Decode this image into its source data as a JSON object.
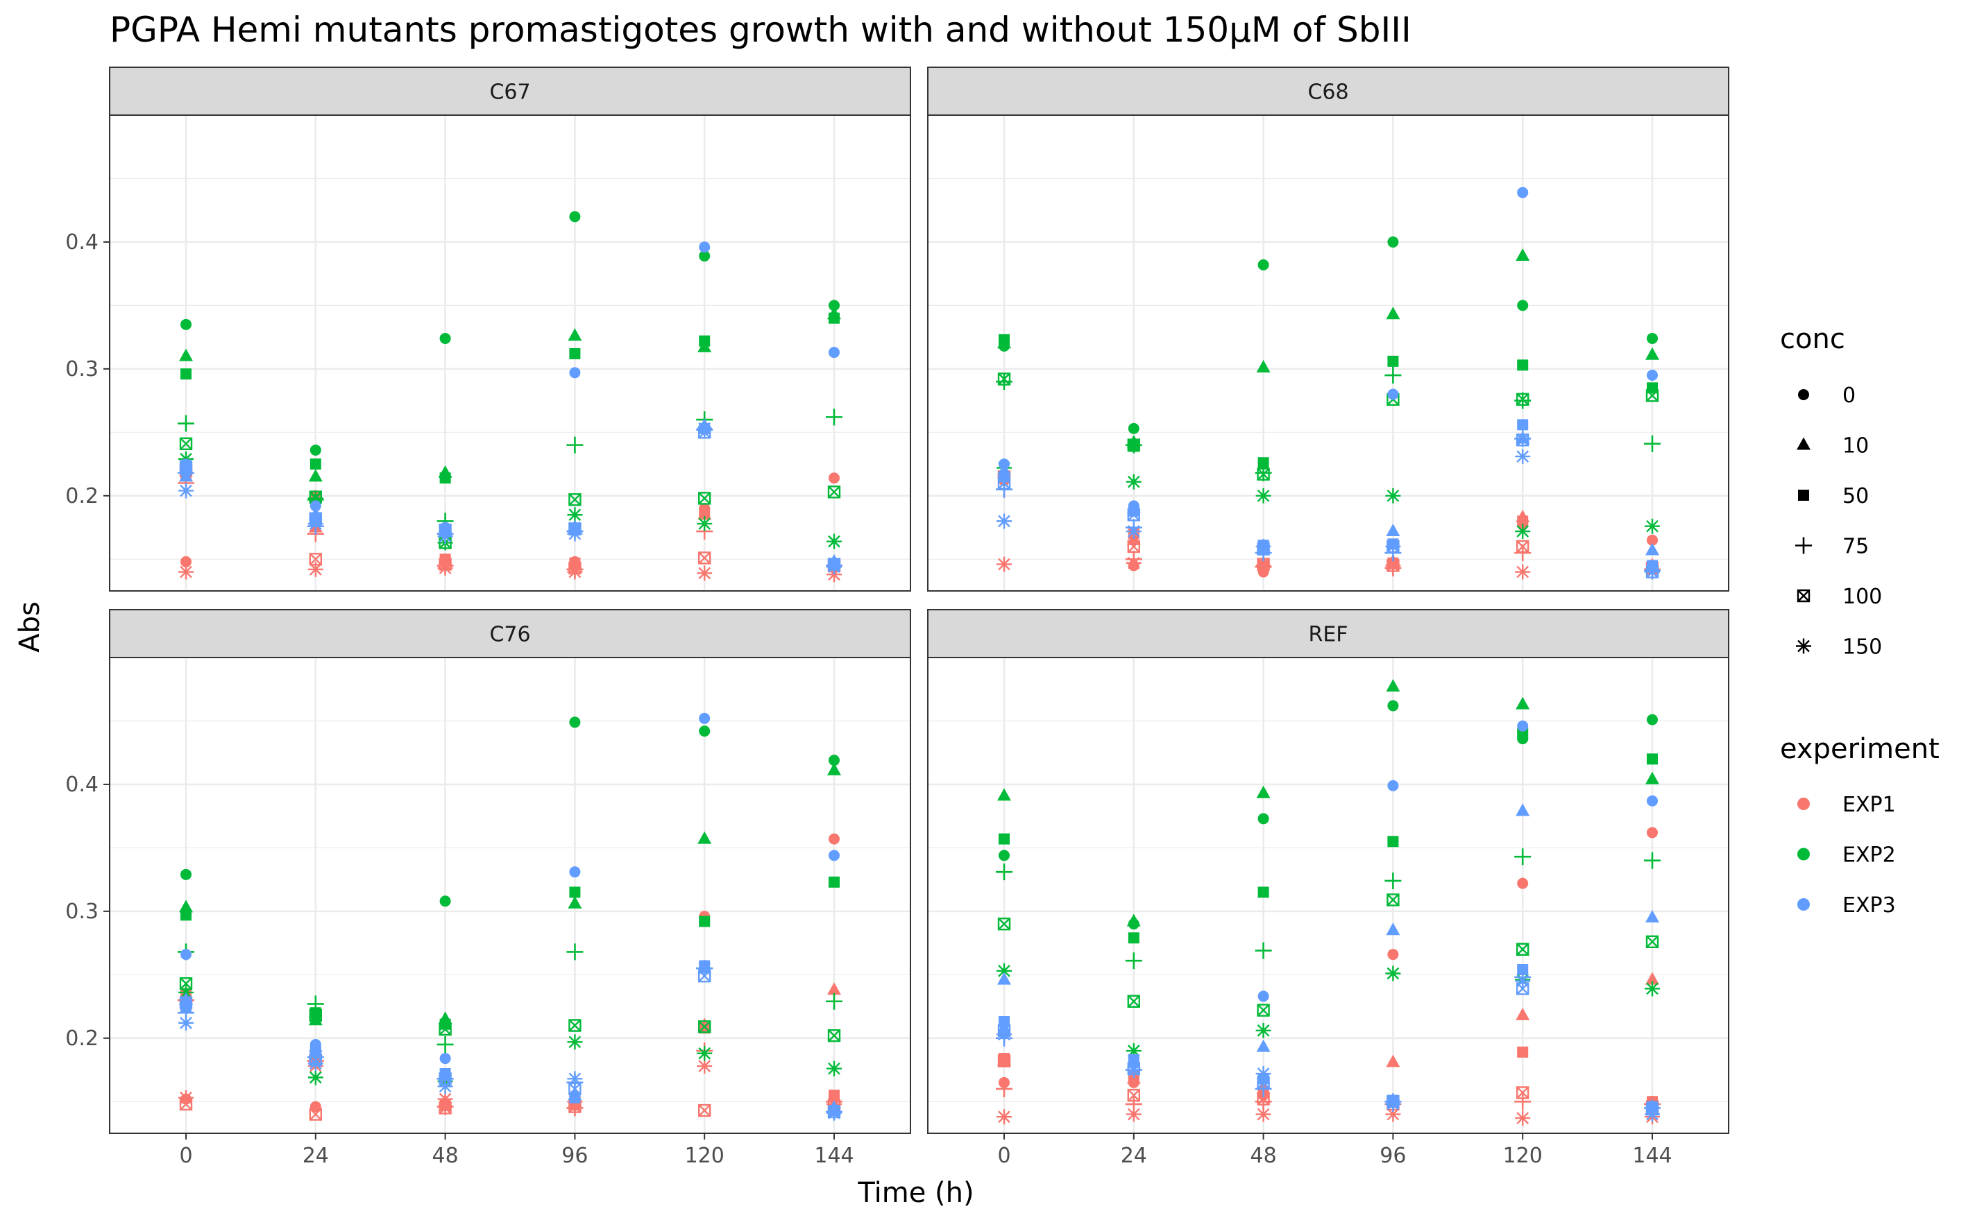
{
  "chart_data": {
    "type": "scatter",
    "title": "PGPA Hemi mutants promastigotes growth with and without 150µM of SbIII",
    "xlabel": "Time (h)",
    "ylabel": "Abs",
    "x_categories": [
      "0",
      "24",
      "48",
      "96",
      "120",
      "144"
    ],
    "y_ticks": [
      0.2,
      0.3,
      0.4
    ],
    "ylim": [
      0.125,
      0.5
    ],
    "grid": true,
    "legend_position": "right",
    "legends": {
      "conc": {
        "title": "conc",
        "entries": [
          "0",
          "10",
          "50",
          "75",
          "100",
          "150"
        ],
        "shapes": [
          "circle",
          "triangle",
          "square",
          "plus",
          "square-cross",
          "asterisk"
        ]
      },
      "experiment": {
        "title": "experiment",
        "entries": [
          "EXP1",
          "EXP2",
          "EXP3"
        ]
      }
    },
    "colors": {
      "EXP1": "#F8766D",
      "EXP2": "#00BA38",
      "EXP3": "#619CFF"
    },
    "conc_levels": [
      "0",
      "10",
      "50",
      "75",
      "100",
      "150"
    ],
    "panels": [
      {
        "name": "C67",
        "series": [
          {
            "experiment": "EXP1",
            "conc": {
              "0": [
                0.148,
                0.2,
                0.15,
                0.148,
                0.19,
                0.214
              ],
              "10": [
                0.215,
                0.175,
                0.148,
                0.145,
                0.185,
                0.147
              ],
              "50": [
                0.218,
                0.18,
                0.15,
                0.147,
                0.186,
                0.146
              ],
              "75": [
                0.21,
                0.17,
                0.145,
                0.142,
                0.172,
                0.145
              ],
              "100": [
                0.22,
                0.15,
                0.146,
                0.143,
                0.151,
                0.145
              ],
              "150": [
                0.14,
                0.142,
                0.143,
                0.14,
                0.139,
                0.138
              ]
            }
          },
          {
            "experiment": "EXP2",
            "conc": {
              "0": [
                0.335,
                0.236,
                0.324,
                0.42,
                0.389,
                0.35
              ],
              "10": [
                0.31,
                0.215,
                0.218,
                0.326,
                0.317,
                0.343
              ],
              "50": [
                0.296,
                0.225,
                0.214,
                0.312,
                0.322,
                0.34
              ],
              "75": [
                0.257,
                0.197,
                0.18,
                0.24,
                0.26,
                0.262
              ],
              "100": [
                0.241,
                0.199,
                0.163,
                0.197,
                0.198,
                0.203
              ],
              "150": [
                0.229,
                0.198,
                0.163,
                0.185,
                0.178,
                0.164
              ]
            }
          },
          {
            "experiment": "EXP3",
            "conc": {
              "0": [
                0.225,
                0.192,
                0.175,
                0.297,
                0.396,
                0.313
              ],
              "10": [
                0.215,
                0.185,
                0.171,
                0.175,
                0.255,
                0.148
              ],
              "50": [
                0.22,
                0.18,
                0.172,
                0.173,
                0.253,
                0.146
              ],
              "75": [
                0.218,
                0.176,
                0.17,
                0.172,
                0.252,
                0.145
              ],
              "100": [
                0.223,
                0.182,
                0.173,
                0.174,
                0.25,
                0.146
              ],
              "150": [
                0.204,
                0.178,
                0.168,
                0.17,
                0.253,
                0.144
              ]
            }
          }
        ]
      },
      {
        "name": "C68",
        "series": [
          {
            "experiment": "EXP1",
            "conc": {
              "0": [
                0.212,
                0.145,
                0.14,
                0.146,
                0.177,
                0.165
              ],
              "10": [
                0.218,
                0.165,
                0.147,
                0.148,
                0.183,
                0.145
              ],
              "50": [
                0.215,
                0.17,
                0.145,
                0.147,
                0.18,
                0.144
              ],
              "75": [
                0.205,
                0.15,
                0.144,
                0.143,
                0.155,
                0.142
              ],
              "100": [
                0.215,
                0.16,
                0.146,
                0.145,
                0.16,
                0.143
              ],
              "150": [
                0.146,
                0.147,
                0.145,
                0.145,
                0.14,
                0.142
              ]
            }
          },
          {
            "experiment": "EXP2",
            "conc": {
              "0": [
                0.318,
                0.253,
                0.382,
                0.4,
                0.35,
                0.324
              ],
              "10": [
                0.32,
                0.242,
                0.301,
                0.343,
                0.389,
                0.311
              ],
              "50": [
                0.323,
                0.239,
                0.226,
                0.306,
                0.303,
                0.285
              ],
              "75": [
                0.29,
                0.24,
                0.218,
                0.295,
                0.275,
                0.241
              ],
              "100": [
                0.292,
                0.24,
                0.217,
                0.276,
                0.276,
                0.279
              ],
              "150": [
                0.222,
                0.211,
                0.2,
                0.2,
                0.172,
                0.176
              ]
            }
          },
          {
            "experiment": "EXP3",
            "conc": {
              "0": [
                0.225,
                0.192,
                0.16,
                0.28,
                0.439,
                0.295
              ],
              "10": [
                0.22,
                0.19,
                0.16,
                0.172,
                0.245,
                0.157
              ],
              "50": [
                0.215,
                0.188,
                0.161,
                0.162,
                0.256,
                0.145
              ],
              "75": [
                0.205,
                0.175,
                0.155,
                0.155,
                0.245,
                0.141
              ],
              "100": [
                0.21,
                0.185,
                0.158,
                0.16,
                0.244,
                0.14
              ],
              "150": [
                0.18,
                0.172,
                0.16,
                0.16,
                0.231,
                0.14
              ]
            }
          }
        ]
      },
      {
        "name": "C76",
        "series": [
          {
            "experiment": "EXP1",
            "conc": {
              "0": [
                0.152,
                0.146,
                0.148,
                0.147,
                0.296,
                0.357
              ],
              "10": [
                0.232,
                0.19,
                0.15,
                0.15,
                0.21,
                0.238
              ],
              "50": [
                0.235,
                0.185,
                0.147,
                0.148,
                0.208,
                0.155
              ],
              "75": [
                0.23,
                0.182,
                0.146,
                0.145,
                0.19,
                0.15
              ],
              "100": [
                0.148,
                0.14,
                0.145,
                0.146,
                0.143,
                0.147
              ],
              "150": [
                0.153,
                0.178,
                0.152,
                0.15,
                0.178,
                0.148
              ]
            }
          },
          {
            "experiment": "EXP2",
            "conc": {
              "0": [
                0.329,
                0.22,
                0.308,
                0.449,
                0.442,
                0.419
              ],
              "10": [
                0.303,
                0.214,
                0.215,
                0.306,
                0.357,
                0.411
              ],
              "50": [
                0.297,
                0.22,
                0.211,
                0.315,
                0.292,
                0.323
              ],
              "75": [
                0.268,
                0.227,
                0.195,
                0.268,
                0.255,
                0.229
              ],
              "100": [
                0.243,
                0.218,
                0.207,
                0.21,
                0.209,
                0.202
              ],
              "150": [
                0.236,
                0.169,
                0.166,
                0.197,
                0.188,
                0.176
              ]
            }
          },
          {
            "experiment": "EXP3",
            "conc": {
              "0": [
                0.266,
                0.195,
                0.184,
                0.331,
                0.452,
                0.344
              ],
              "10": [
                0.23,
                0.193,
                0.17,
                0.155,
                0.255,
                0.145
              ],
              "50": [
                0.225,
                0.19,
                0.172,
                0.153,
                0.257,
                0.143
              ],
              "75": [
                0.22,
                0.185,
                0.168,
                0.165,
                0.255,
                0.142
              ],
              "100": [
                0.228,
                0.183,
                0.168,
                0.16,
                0.249,
                0.142
              ],
              "150": [
                0.212,
                0.18,
                0.162,
                0.168,
                0.255,
                0.141
              ]
            }
          }
        ]
      },
      {
        "name": "REF",
        "series": [
          {
            "experiment": "EXP1",
            "conc": {
              "0": [
                0.165,
                0.165,
                0.155,
                0.266,
                0.322,
                0.362
              ],
              "10": [
                0.182,
                0.168,
                0.16,
                0.181,
                0.218,
                0.246
              ],
              "50": [
                0.184,
                0.17,
                0.158,
                0.15,
                0.189,
                0.15
              ],
              "75": [
                0.16,
                0.148,
                0.15,
                0.148,
                0.15,
                0.148
              ],
              "100": [
                0.182,
                0.155,
                0.152,
                0.148,
                0.157,
                0.146
              ],
              "150": [
                0.138,
                0.14,
                0.14,
                0.14,
                0.137,
                0.138
              ]
            }
          },
          {
            "experiment": "EXP2",
            "conc": {
              "0": [
                0.344,
                0.29,
                0.373,
                0.462,
                0.436,
                0.451
              ],
              "10": [
                0.391,
                0.292,
                0.393,
                0.477,
                0.463,
                0.404
              ],
              "50": [
                0.357,
                0.279,
                0.315,
                0.355,
                0.44,
                0.42
              ],
              "75": [
                0.331,
                0.261,
                0.269,
                0.324,
                0.343,
                0.34
              ],
              "100": [
                0.29,
                0.229,
                0.222,
                0.309,
                0.27,
                0.276
              ],
              "150": [
                0.253,
                0.19,
                0.206,
                0.251,
                0.246,
                0.239
              ]
            }
          },
          {
            "experiment": "EXP3",
            "conc": {
              "0": [
                0.205,
                0.182,
                0.233,
                0.399,
                0.446,
                0.387
              ],
              "10": [
                0.246,
                0.18,
                0.193,
                0.285,
                0.379,
                0.295
              ],
              "50": [
                0.213,
                0.183,
                0.168,
                0.151,
                0.254,
                0.146
              ],
              "75": [
                0.2,
                0.175,
                0.16,
                0.15,
                0.248,
                0.145
              ],
              "100": [
                0.206,
                0.176,
                0.165,
                0.15,
                0.239,
                0.144
              ],
              "150": [
                0.203,
                0.175,
                0.172,
                0.148,
                0.245,
                0.14
              ]
            }
          }
        ]
      }
    ]
  }
}
